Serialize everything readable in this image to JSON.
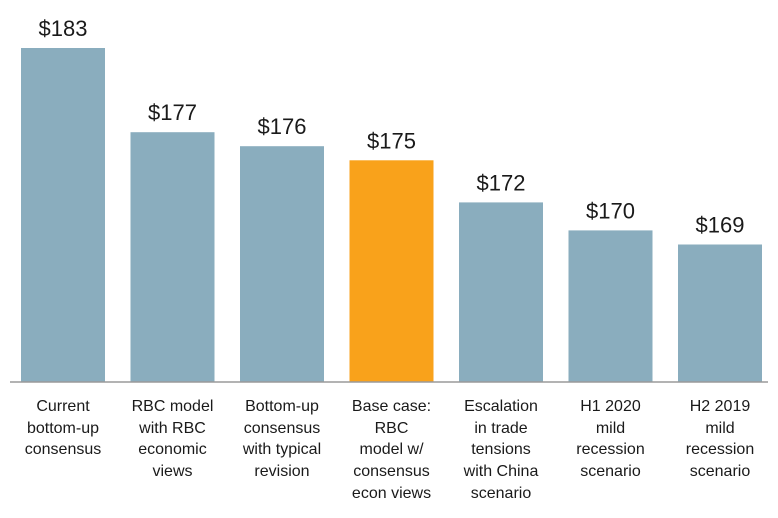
{
  "chart_data": {
    "type": "bar",
    "title": "",
    "xlabel": "",
    "ylabel": "",
    "ylim": [
      159.2,
      183
    ],
    "grid": false,
    "categories": [
      [
        "Current",
        "bottom-up",
        "consensus"
      ],
      [
        "RBC model",
        "with RBC",
        "economic",
        "views"
      ],
      [
        "Bottom-up",
        "consensus",
        "with typical",
        "revision"
      ],
      [
        "Base case:",
        "RBC",
        "model w/",
        "consensus",
        "econ views"
      ],
      [
        "Escalation",
        "in trade",
        "tensions",
        "with China",
        "scenario"
      ],
      [
        "H1 2020",
        "mild",
        "recession",
        "scenario"
      ],
      [
        "H2 2019",
        "mild",
        "recession",
        "scenario"
      ]
    ],
    "values": [
      183,
      177,
      176,
      175,
      172,
      170,
      169
    ],
    "data_labels": [
      "$183",
      "$177",
      "$176",
      "$175",
      "$172",
      "$170",
      "$169"
    ],
    "colors": {
      "default": "#8aadbe",
      "highlight": "#f9a21b",
      "axis": "#9a9a9a",
      "text": "#1a1a1a"
    },
    "highlight_index": 3
  }
}
